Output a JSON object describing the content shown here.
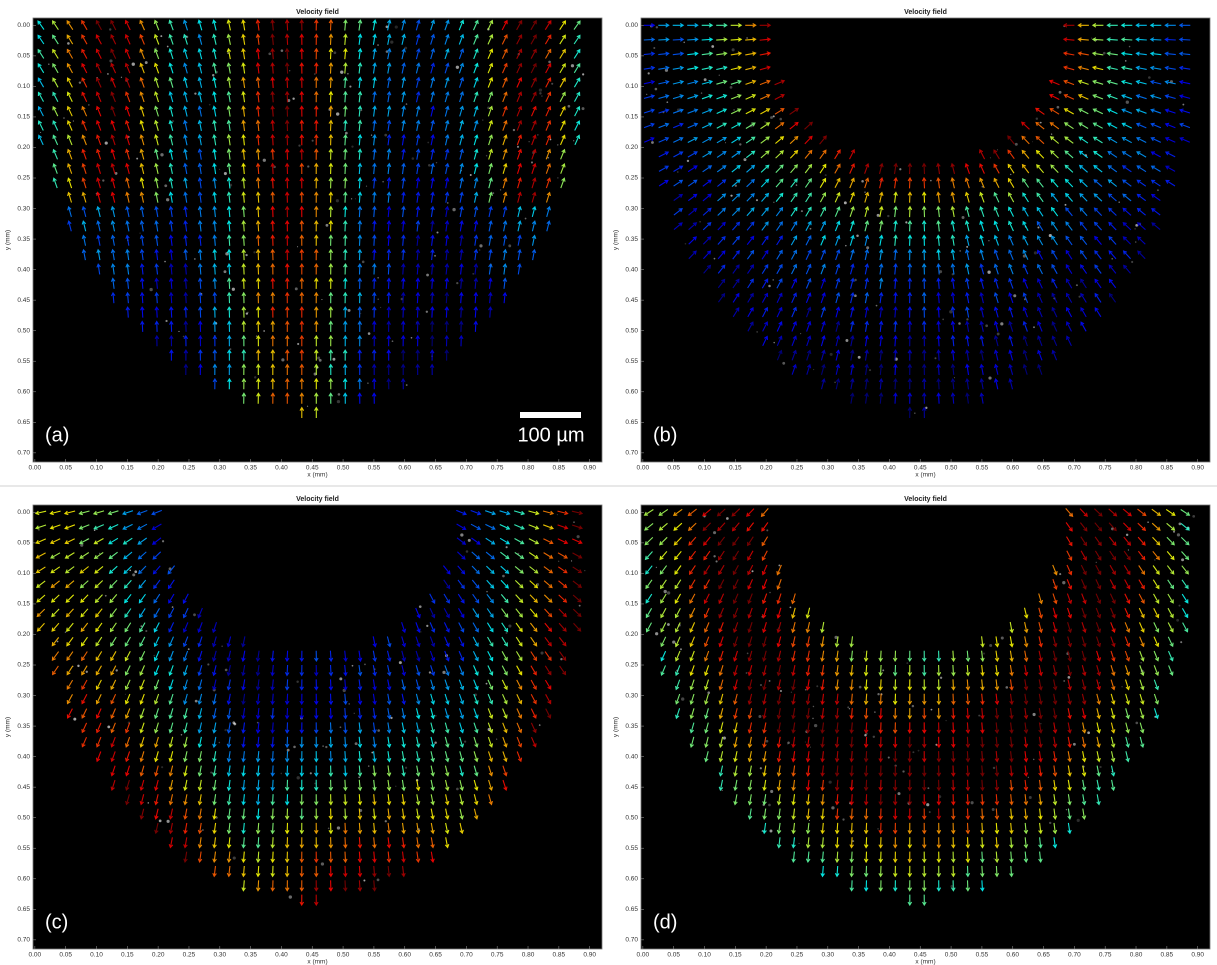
{
  "chart_data": [
    {
      "type": "quiver",
      "title": "Velocity field",
      "xlabel": "x (mm)",
      "ylabel": "y (mm)",
      "panel_label": "(a)",
      "scale_bar_label": "100 µm",
      "xlim": [
        -0.003,
        0.92
      ],
      "ylim": [
        -0.012,
        0.715
      ],
      "y_reversed": true,
      "xticks": [
        {
          "value": 0,
          "label": "0.00"
        },
        0.05,
        {
          "value": 0.1,
          "label": "0.10"
        },
        0.15,
        {
          "value": 0.2,
          "label": "0.20"
        },
        0.25,
        {
          "value": 0.3,
          "label": "0.30"
        },
        0.35,
        {
          "value": 0.4,
          "label": "0.40"
        },
        0.45,
        {
          "value": 0.5,
          "label": "0.50"
        },
        0.55,
        {
          "value": 0.6,
          "label": "0.60"
        },
        0.65,
        {
          "value": 0.7,
          "label": "0.70"
        },
        0.75,
        {
          "value": 0.8,
          "label": "0.80"
        },
        0.85,
        {
          "value": 0.9,
          "label": "0.90"
        }
      ],
      "yticks": [
        {
          "value": 0,
          "label": "0.00"
        },
        0.05,
        {
          "value": 0.1,
          "label": "0.10"
        },
        0.15,
        {
          "value": 0.2,
          "label": "0.20"
        },
        0.25,
        {
          "value": 0.3,
          "label": "0.30"
        },
        0.35,
        {
          "value": 0.4,
          "label": "0.40"
        },
        0.45,
        {
          "value": 0.5,
          "label": "0.50"
        },
        0.55,
        {
          "value": 0.6,
          "label": "0.60"
        },
        0.65,
        {
          "value": 0.7,
          "label": "0.70"
        }
      ]
    },
    {
      "type": "quiver",
      "title": "Velocity field",
      "xlabel": "x (mm)",
      "ylabel": "y (mm)",
      "panel_label": "(b)",
      "xlim": [
        -0.003,
        0.92
      ],
      "ylim": [
        -0.012,
        0.715
      ],
      "y_reversed": true,
      "xticks": [
        {
          "value": 0,
          "label": "0.00"
        },
        0.05,
        {
          "value": 0.1,
          "label": "0.10"
        },
        0.15,
        {
          "value": 0.2,
          "label": "0.20"
        },
        0.25,
        {
          "value": 0.3,
          "label": "0.30"
        },
        0.35,
        {
          "value": 0.4,
          "label": "0.40"
        },
        0.45,
        {
          "value": 0.5,
          "label": "0.50"
        },
        0.55,
        {
          "value": 0.6,
          "label": "0.60"
        },
        0.65,
        {
          "value": 0.7,
          "label": "0.70"
        },
        0.75,
        {
          "value": 0.8,
          "label": "0.80"
        },
        0.85,
        {
          "value": 0.9,
          "label": "0.90"
        }
      ],
      "yticks": [
        {
          "value": 0,
          "label": "0.00"
        },
        0.05,
        {
          "value": 0.1,
          "label": "0.10"
        },
        0.15,
        {
          "value": 0.2,
          "label": "0.20"
        },
        0.25,
        {
          "value": 0.3,
          "label": "0.30"
        },
        0.35,
        {
          "value": 0.4,
          "label": "0.40"
        },
        0.45,
        {
          "value": 0.5,
          "label": "0.50"
        },
        0.55,
        {
          "value": 0.6,
          "label": "0.60"
        },
        0.65,
        {
          "value": 0.7,
          "label": "0.70"
        }
      ]
    },
    {
      "type": "quiver",
      "title": "Velocity field",
      "xlabel": "x (mm)",
      "ylabel": "y (mm)",
      "panel_label": "(c)",
      "xlim": [
        -0.003,
        0.92
      ],
      "ylim": [
        -0.012,
        0.715
      ],
      "y_reversed": true,
      "xticks": [
        {
          "value": 0,
          "label": "0.00"
        },
        0.05,
        {
          "value": 0.1,
          "label": "0.10"
        },
        0.15,
        {
          "value": 0.2,
          "label": "0.20"
        },
        0.25,
        {
          "value": 0.3,
          "label": "0.30"
        },
        0.35,
        {
          "value": 0.4,
          "label": "0.40"
        },
        0.45,
        {
          "value": 0.5,
          "label": "0.50"
        },
        0.55,
        {
          "value": 0.6,
          "label": "0.60"
        },
        0.65,
        {
          "value": 0.7,
          "label": "0.70"
        },
        0.75,
        {
          "value": 0.8,
          "label": "0.80"
        },
        0.85,
        {
          "value": 0.9,
          "label": "0.90"
        }
      ],
      "yticks": [
        {
          "value": 0,
          "label": "0.00"
        },
        0.05,
        {
          "value": 0.1,
          "label": "0.10"
        },
        0.15,
        {
          "value": 0.2,
          "label": "0.20"
        },
        0.25,
        {
          "value": 0.3,
          "label": "0.30"
        },
        0.35,
        {
          "value": 0.4,
          "label": "0.40"
        },
        0.45,
        {
          "value": 0.5,
          "label": "0.50"
        },
        0.55,
        {
          "value": 0.6,
          "label": "0.60"
        },
        0.65,
        {
          "value": 0.7,
          "label": "0.70"
        }
      ]
    },
    {
      "type": "quiver",
      "title": "Velocity field",
      "xlabel": "x (mm)",
      "ylabel": "y (mm)",
      "panel_label": "(d)",
      "xlim": [
        -0.003,
        0.92
      ],
      "ylim": [
        -0.012,
        0.715
      ],
      "y_reversed": true,
      "xticks": [
        {
          "value": 0,
          "label": "0.00"
        },
        0.05,
        {
          "value": 0.1,
          "label": "0.10"
        },
        0.15,
        {
          "value": 0.2,
          "label": "0.20"
        },
        0.25,
        {
          "value": 0.3,
          "label": "0.30"
        },
        0.35,
        {
          "value": 0.4,
          "label": "0.40"
        },
        0.45,
        {
          "value": 0.5,
          "label": "0.50"
        },
        0.55,
        {
          "value": 0.6,
          "label": "0.60"
        },
        0.65,
        {
          "value": 0.7,
          "label": "0.70"
        },
        0.75,
        {
          "value": 0.8,
          "label": "0.80"
        },
        0.85,
        {
          "value": 0.9,
          "label": "0.90"
        }
      ],
      "yticks": [
        {
          "value": 0,
          "label": "0.00"
        },
        0.05,
        {
          "value": 0.1,
          "label": "0.10"
        },
        0.15,
        {
          "value": 0.2,
          "label": "0.20"
        },
        0.25,
        {
          "value": 0.3,
          "label": "0.30"
        },
        0.35,
        {
          "value": 0.4,
          "label": "0.40"
        },
        0.45,
        {
          "value": 0.5,
          "label": "0.50"
        },
        0.55,
        {
          "value": 0.6,
          "label": "0.60"
        },
        0.65,
        {
          "value": 0.7,
          "label": "0.70"
        }
      ]
    }
  ]
}
